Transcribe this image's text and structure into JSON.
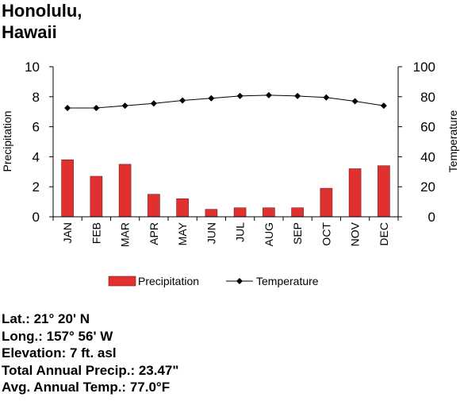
{
  "title": {
    "line1": "Honolulu,",
    "line2": "Hawaii"
  },
  "chart_data": {
    "type": "bar+line",
    "categories": [
      "JAN",
      "FEB",
      "MAR",
      "APR",
      "MAY",
      "JUN",
      "JUL",
      "AUG",
      "SEP",
      "OCT",
      "NOV",
      "DEC"
    ],
    "series": [
      {
        "name": "Precipitation",
        "kind": "bar",
        "axis": "left",
        "color": "#e03030",
        "values": [
          3.8,
          2.7,
          3.5,
          1.5,
          1.2,
          0.5,
          0.6,
          0.6,
          0.6,
          1.9,
          3.2,
          3.4
        ]
      },
      {
        "name": "Temperature",
        "kind": "line",
        "axis": "right",
        "color": "#000000",
        "values": [
          72.5,
          72.5,
          74,
          75.5,
          77.5,
          79,
          80.5,
          81,
          80.5,
          79.5,
          77,
          74
        ]
      }
    ],
    "ylabel_left": "Precipitation",
    "ylabel_right": "Temperature",
    "ylim_left": [
      0,
      10
    ],
    "yticks_left": [
      "0",
      "2",
      "4",
      "6",
      "8",
      "10"
    ],
    "ylim_right": [
      0,
      100
    ],
    "yticks_right": [
      "0",
      "20",
      "40",
      "60",
      "80",
      "100"
    ],
    "grid": false,
    "legend": "bottom"
  },
  "info": {
    "lat": "Lat.: 21° 20' N",
    "long": "Long.: 157° 56' W",
    "elevation": "Elevation: 7 ft. asl",
    "precip": "Total Annual Precip.: 23.47\"",
    "temp": "Avg. Annual Temp.: 77.0°F"
  }
}
